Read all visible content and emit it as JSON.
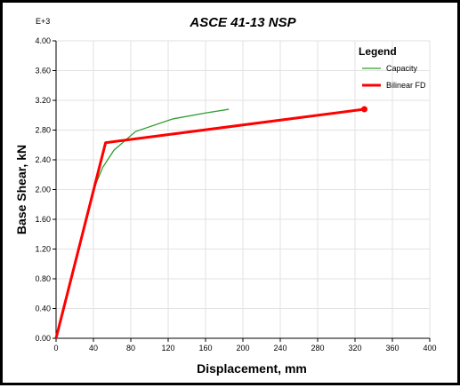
{
  "chart_data": {
    "type": "line",
    "title": "ASCE 41-13 NSP",
    "xlabel": "Displacement, mm",
    "ylabel": "Base Shear, kN",
    "y_multiplier_label": "E+3",
    "xlim": [
      0,
      400
    ],
    "ylim": [
      0,
      4.0
    ],
    "x_ticks": [
      "0",
      "40",
      "80",
      "120",
      "160",
      "200",
      "240",
      "280",
      "320",
      "360",
      "400"
    ],
    "y_ticks": [
      "0.00",
      "0.40",
      "0.80",
      "1.20",
      "1.60",
      "2.00",
      "2.40",
      "2.80",
      "3.20",
      "3.60",
      "4.00"
    ],
    "grid": true,
    "legend_title": "Legend",
    "legend_position": "top-right",
    "series": [
      {
        "name": "Capacity",
        "color": "#2e9e2e",
        "x": [
          0,
          40,
          50,
          62,
          85,
          125,
          160,
          185
        ],
        "y": [
          0,
          2.0,
          2.3,
          2.53,
          2.78,
          2.95,
          3.03,
          3.08
        ]
      },
      {
        "name": "Bilinear FD",
        "color": "#ff0000",
        "x": [
          0,
          53,
          330
        ],
        "y": [
          0,
          2.63,
          3.08
        ]
      }
    ]
  }
}
